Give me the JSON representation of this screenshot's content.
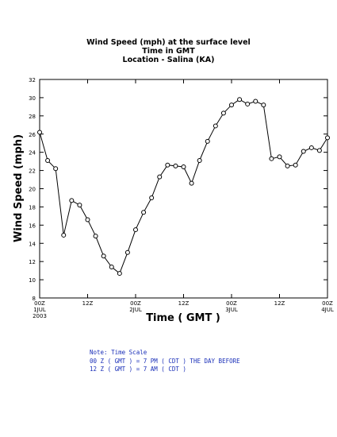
{
  "title": {
    "line1": "Wind Speed (mph) at the surface level",
    "line2": "Time in GMT",
    "line3": "Location - Salina (KA)"
  },
  "note": {
    "line1": "Note: Time Scale",
    "line2": "00 Z ( GMT ) = 7 PM ( CDT ) THE DAY BEFORE",
    "line3": "12 Z ( GMT ) = 7 AM ( CDT )"
  },
  "chart_data": {
    "type": "line",
    "xlabel": "Time ( GMT )",
    "ylabel": "Wind Speed (mph)",
    "ylim": [
      8,
      32
    ],
    "xlim": [
      0,
      72
    ],
    "yticks": [
      8,
      10,
      12,
      14,
      16,
      18,
      20,
      22,
      24,
      26,
      28,
      30,
      32
    ],
    "xticks": [
      {
        "x": 0,
        "lines": [
          "00Z",
          "1JUL",
          "2003"
        ]
      },
      {
        "x": 12,
        "lines": [
          "12Z"
        ]
      },
      {
        "x": 24,
        "lines": [
          "00Z",
          "2JUL"
        ]
      },
      {
        "x": 36,
        "lines": [
          "12Z"
        ]
      },
      {
        "x": 48,
        "lines": [
          "00Z",
          "3JUL"
        ]
      },
      {
        "x": 60,
        "lines": [
          "12Z"
        ]
      },
      {
        "x": 72,
        "lines": [
          "00Z",
          "4JUL"
        ]
      }
    ],
    "grid": false,
    "series": [
      {
        "marker": "open-circle",
        "color": "#000000",
        "x": [
          0,
          2,
          4,
          6,
          8,
          10,
          12,
          14,
          16,
          18,
          20,
          22,
          24,
          26,
          28,
          30,
          32,
          34,
          36,
          38,
          40,
          42,
          44,
          46,
          48,
          50,
          52,
          54,
          56,
          58,
          60,
          62,
          64,
          66,
          68,
          70,
          72
        ],
        "y": [
          26.2,
          23.1,
          22.2,
          14.9,
          18.7,
          18.2,
          16.6,
          14.8,
          12.6,
          11.4,
          10.7,
          13.0,
          15.5,
          17.4,
          19.0,
          21.3,
          22.6,
          22.5,
          22.4,
          20.6,
          23.1,
          25.2,
          26.9,
          28.3,
          29.2,
          29.8,
          29.3,
          29.6,
          29.2,
          23.3,
          23.5,
          22.5,
          22.6,
          24.1,
          24.5,
          24.2,
          25.6
        ]
      }
    ]
  }
}
